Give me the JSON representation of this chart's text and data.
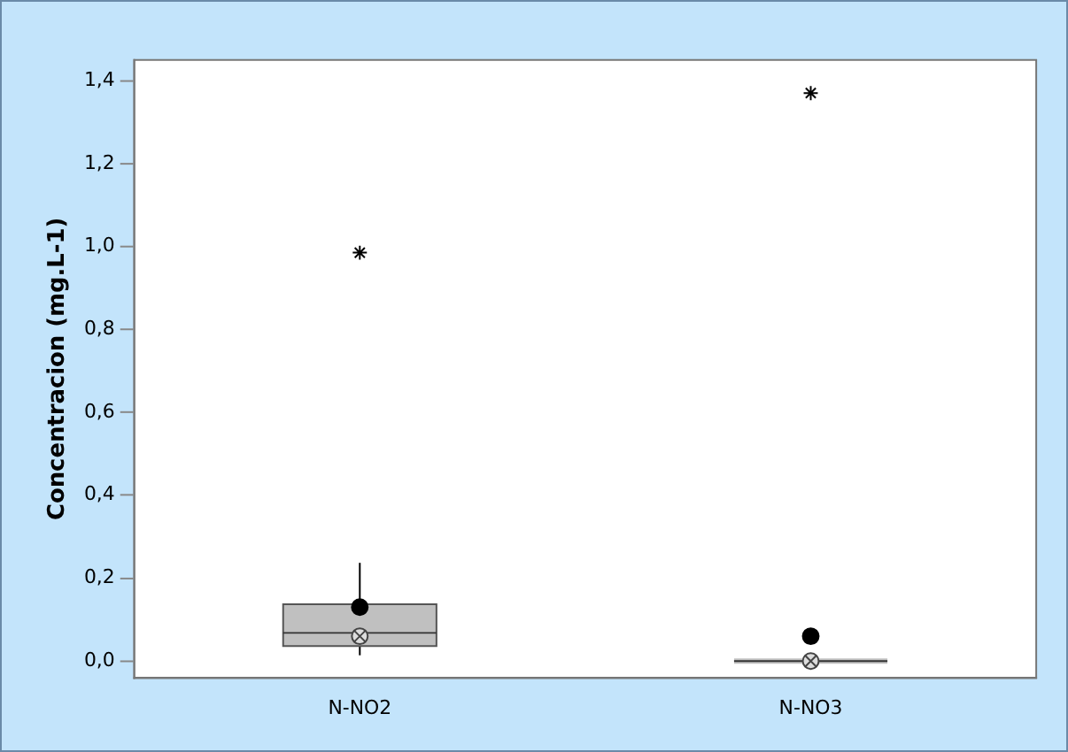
{
  "chart_data": {
    "type": "box",
    "ylabel": "Concentracion (mg.L-1)",
    "categories": [
      "N-NO2",
      "N-NO3"
    ],
    "color": "#c0c0c0",
    "boxes": [
      {
        "low": 0.014,
        "q1": 0.036,
        "median": 0.068,
        "q3": 0.137,
        "high": 0.237,
        "mean": 0.06,
        "outliers": [
          0.985
        ]
      },
      {
        "low": 0,
        "q1": 0,
        "median": 0,
        "q3": 0,
        "high": 0,
        "mean": 0,
        "outliers": [
          1.37
        ]
      }
    ],
    "series": [
      {
        "type": "scatter",
        "x": [
          "N-NO2",
          "N-NO3"
        ],
        "values": [
          0.13,
          0.06
        ],
        "color": "#000000"
      }
    ],
    "ylim": [
      -0.04,
      1.45
    ],
    "yticks": [
      {
        "value": 0,
        "label": "0,0"
      },
      {
        "value": 0.2,
        "label": "0,2"
      },
      {
        "value": 0.4,
        "label": "0,4"
      },
      {
        "value": 0.6,
        "label": "0,6"
      },
      {
        "value": 0.8,
        "label": "0,8"
      },
      {
        "value": 1,
        "label": "1,0"
      },
      {
        "value": 1.2,
        "label": "1,2"
      },
      {
        "value": 1.4,
        "label": "1,4"
      }
    ],
    "grid": false
  }
}
